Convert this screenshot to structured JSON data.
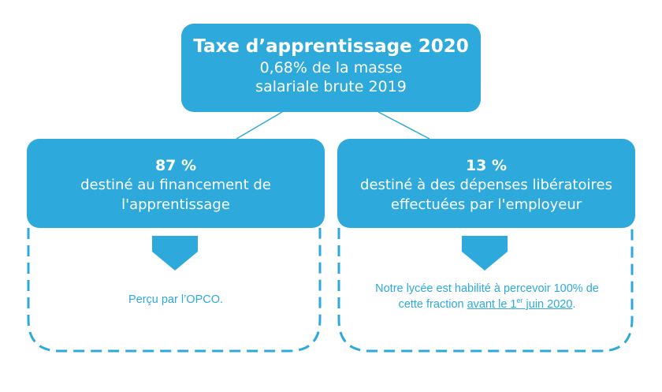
{
  "top": {
    "title": "Taxe d’apprentissage 2020",
    "line1": "0,68% de la masse",
    "line2": "salariale brute 2019"
  },
  "left": {
    "percent": "87 %",
    "line1": "destiné au financement de",
    "line2": "l'apprentissage",
    "note": "Perçu par l’OPCO."
  },
  "right": {
    "percent": "13 %",
    "line1": "destiné à des dépenses libératoires",
    "line2": "effectuées par l'employeur",
    "note_line1": "Notre lycée est habilité à percevoir 100% de",
    "note_line2_prefix": "cette fraction ",
    "note_underline_a": "avant le 1",
    "note_sup": "er",
    "note_underline_b": " juin 2020",
    "note_suffix": "."
  },
  "colors": {
    "primary": "#2ea9dc",
    "background": "#ffffff"
  }
}
